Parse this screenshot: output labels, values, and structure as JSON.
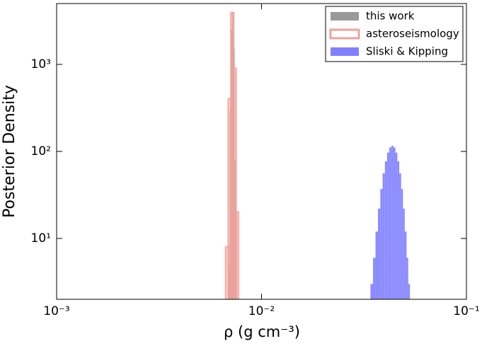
{
  "chart_data": {
    "type": "histogram",
    "x_label": "ρ (g cm⁻³)",
    "y_label": "Posterior Density",
    "xscale": "log",
    "yscale": "log",
    "xlim": [
      0.001,
      0.1
    ],
    "ylim": [
      2,
      5000
    ],
    "xticks": [
      {
        "value": 0.001,
        "label": "10⁻³"
      },
      {
        "value": 0.01,
        "label": "10⁻²"
      },
      {
        "value": 0.1,
        "label": "10⁻¹"
      }
    ],
    "yticks": [
      {
        "value": 10,
        "label": "10¹"
      },
      {
        "value": 100,
        "label": "10²"
      },
      {
        "value": 1000,
        "label": "10³"
      }
    ],
    "legend": "upper right",
    "series": [
      {
        "name": "this work",
        "color": "#999999",
        "style": "fill",
        "bins": [
          0.0069,
          0.007,
          0.0071,
          0.0072,
          0.0073,
          0.0074,
          0.0075
        ],
        "values": [
          5,
          300,
          2500,
          4000,
          1500,
          80
        ]
      },
      {
        "name": "asteroseismology",
        "color": "#f2a09a",
        "style": "outline",
        "bins": [
          0.0067,
          0.0069,
          0.0071,
          0.0073,
          0.0075,
          0.0077
        ],
        "values": [
          8,
          400,
          3900,
          900,
          20
        ]
      },
      {
        "name": "Sliski & Kipping",
        "color": "#8080ff",
        "style": "fill",
        "bins": [
          0.034,
          0.035,
          0.036,
          0.037,
          0.038,
          0.039,
          0.04,
          0.041,
          0.042,
          0.043,
          0.044,
          0.045,
          0.046,
          0.047,
          0.048,
          0.049,
          0.05,
          0.051,
          0.052,
          0.053
        ],
        "values": [
          3,
          6,
          12,
          22,
          37,
          56,
          77,
          97,
          111,
          116,
          111,
          97,
          77,
          56,
          37,
          22,
          12,
          6,
          3
        ]
      }
    ]
  }
}
